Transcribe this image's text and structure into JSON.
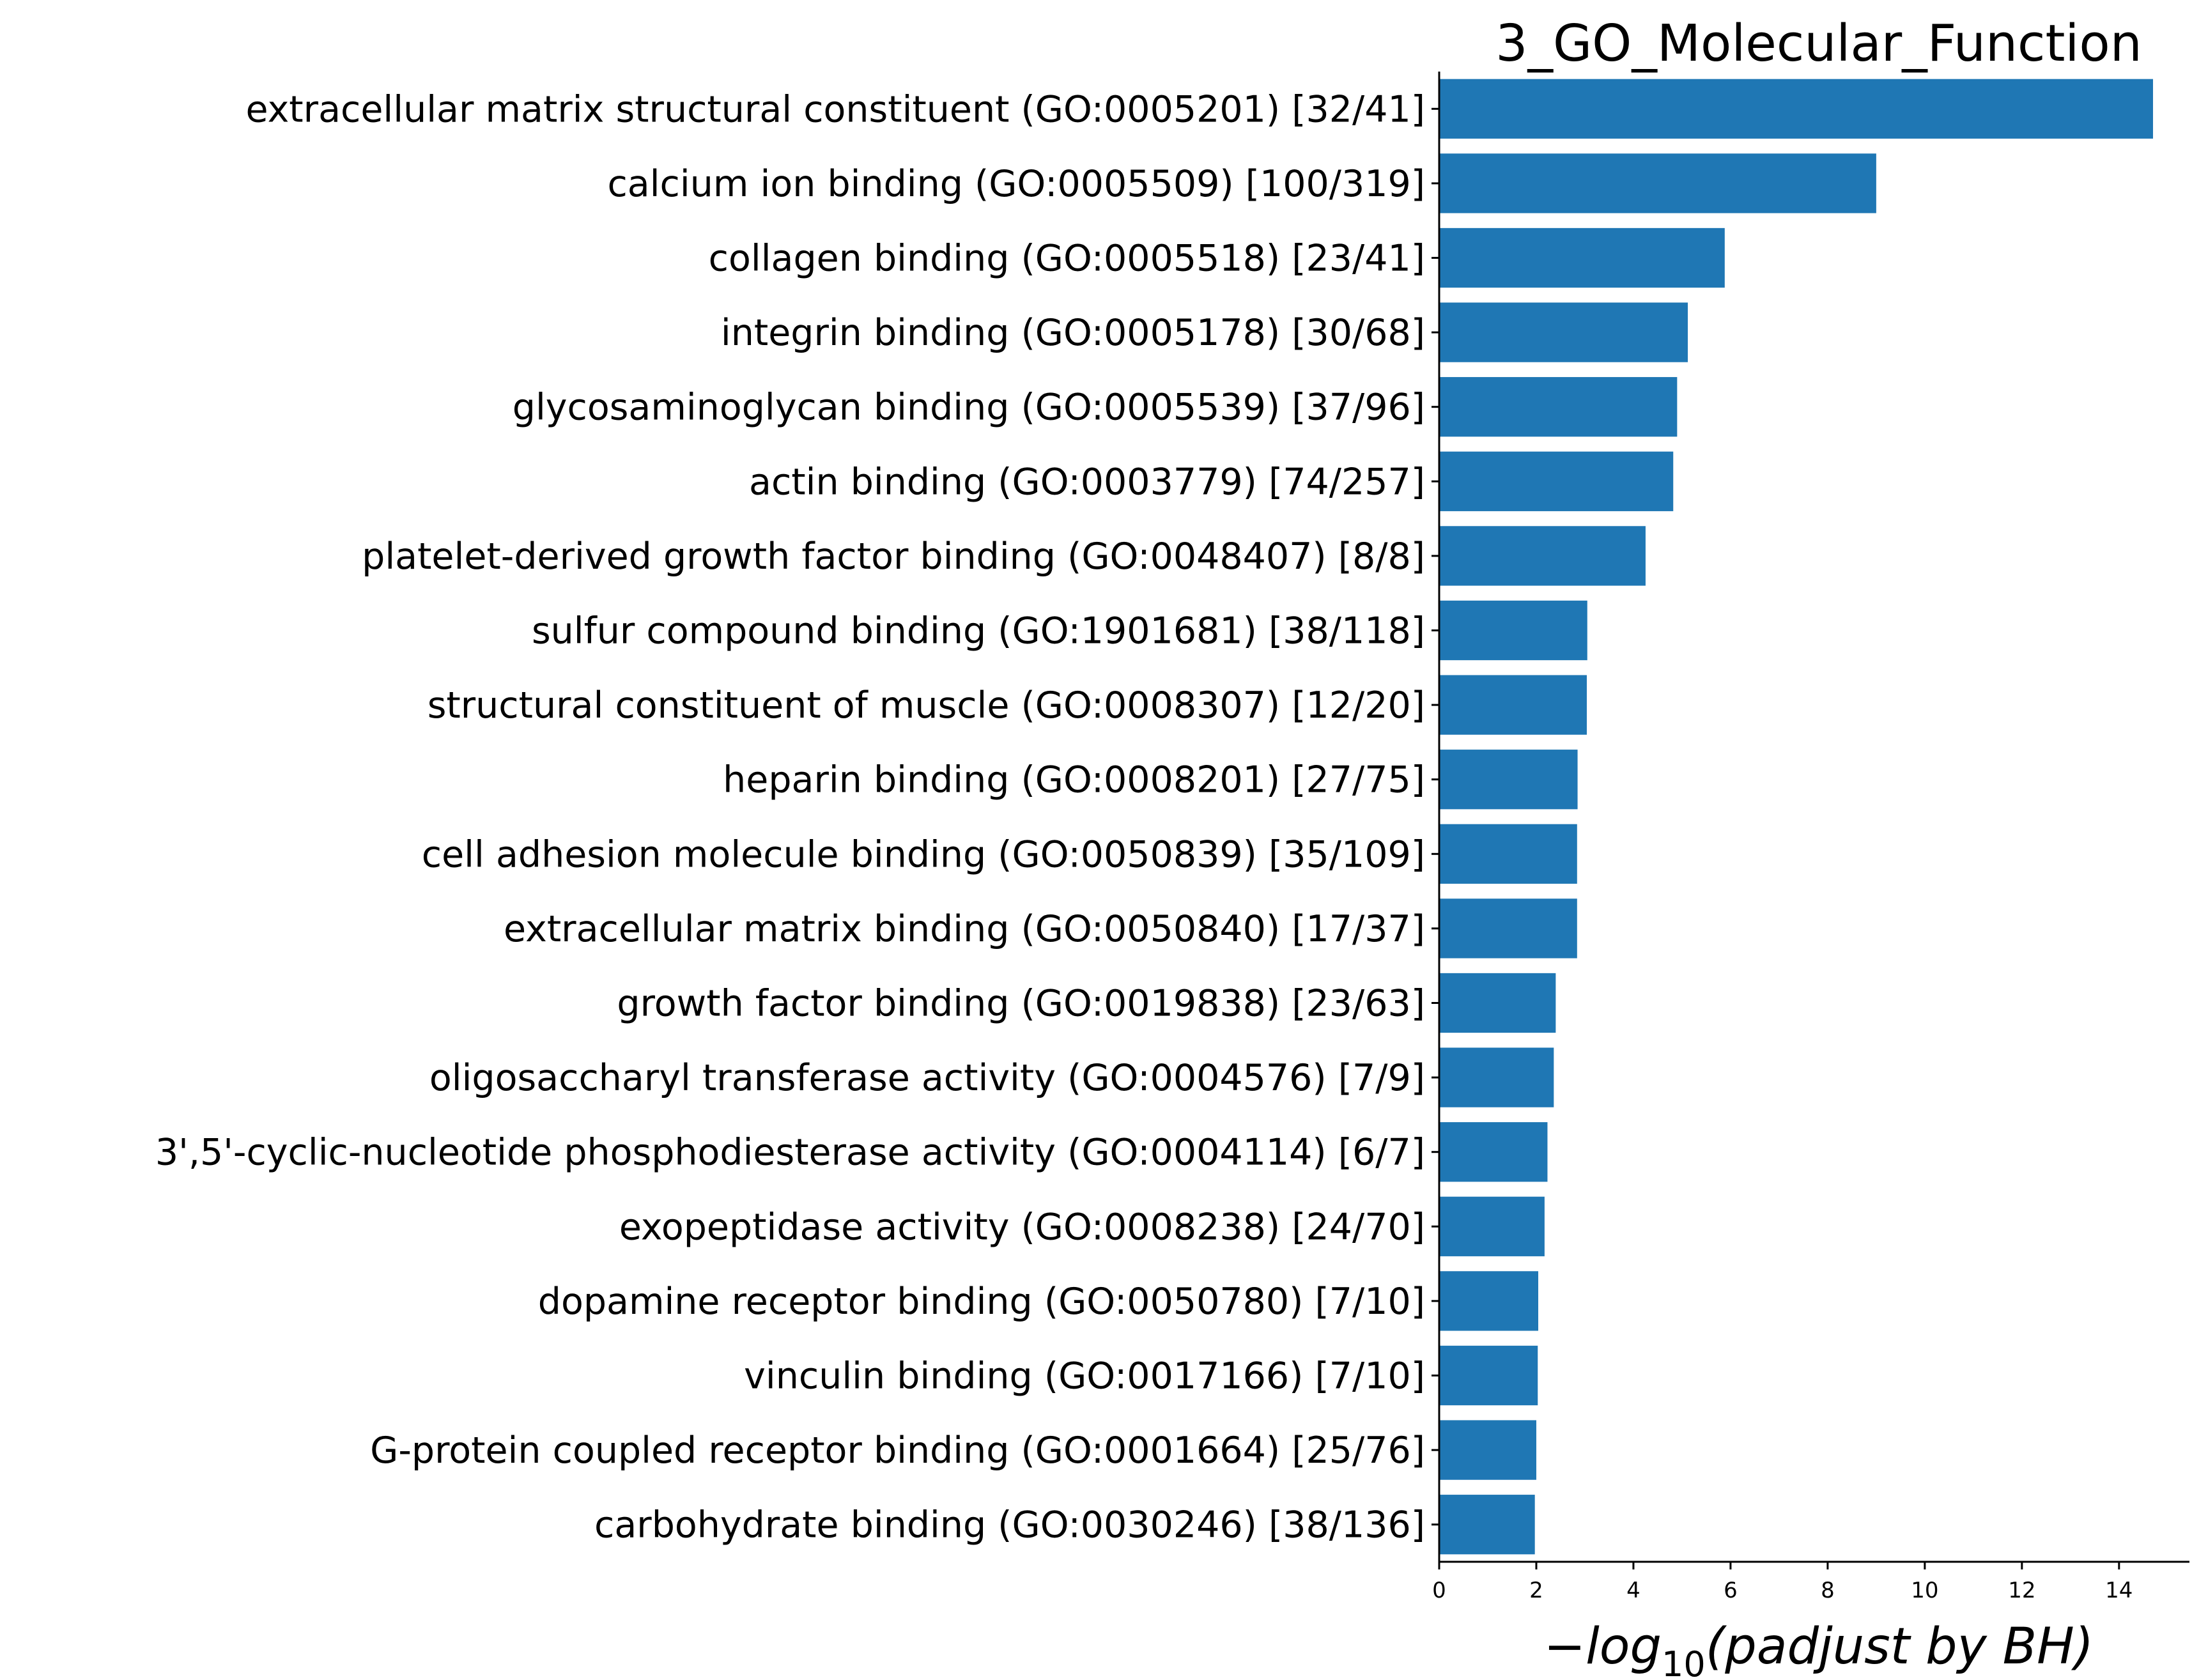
{
  "chart_data": {
    "type": "bar",
    "orientation": "horizontal",
    "title": "3_GO_Molecular_Function",
    "xlabel": {
      "prefix": "−log",
      "subscript": "10",
      "suffix": "(padjust by BH)"
    },
    "ylabel": "",
    "xlim": [
      0,
      15.45
    ],
    "xticks": [
      0,
      2,
      4,
      6,
      8,
      10,
      12,
      14
    ],
    "bar_color": "#1f77b4",
    "categories": [
      "extracellular matrix structural constituent (GO:0005201) [32/41]",
      "calcium ion binding (GO:0005509) [100/319]",
      "collagen binding (GO:0005518) [23/41]",
      "integrin binding (GO:0005178) [30/68]",
      "glycosaminoglycan binding (GO:0005539) [37/96]",
      "actin binding (GO:0003779) [74/257]",
      "platelet-derived growth factor binding (GO:0048407) [8/8]",
      "sulfur compound binding (GO:1901681) [38/118]",
      "structural constituent of muscle (GO:0008307) [12/20]",
      "heparin binding (GO:0008201) [27/75]",
      "cell adhesion molecule binding (GO:0050839) [35/109]",
      "extracellular matrix binding (GO:0050840) [17/37]",
      "growth factor binding (GO:0019838) [23/63]",
      "oligosaccharyl transferase activity (GO:0004576) [7/9]",
      "3',5'-cyclic-nucleotide phosphodiesterase activity (GO:0004114) [6/7]",
      "exopeptidase activity (GO:0008238) [24/70]",
      "dopamine receptor binding (GO:0050780) [7/10]",
      "vinculin binding (GO:0017166) [7/10]",
      "G-protein coupled receptor binding (GO:0001664) [25/76]",
      "carbohydrate binding (GO:0030246) [38/136]"
    ],
    "values": [
      14.7,
      9.0,
      5.88,
      5.12,
      4.9,
      4.82,
      4.25,
      3.05,
      3.04,
      2.85,
      2.84,
      2.84,
      2.4,
      2.36,
      2.23,
      2.17,
      2.04,
      2.03,
      2.0,
      1.97
    ]
  }
}
